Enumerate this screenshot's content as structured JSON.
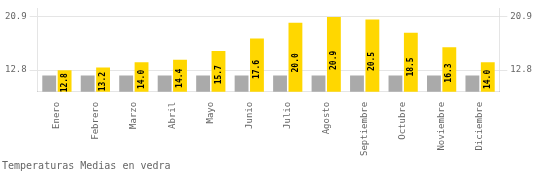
{
  "chart_data": {
    "type": "bar",
    "title": "Temperaturas Medias en vedra",
    "categories": [
      "Enero",
      "Febrero",
      "Marzo",
      "Abril",
      "Mayo",
      "Junio",
      "Julio",
      "Agosto",
      "Septiembre",
      "Octubre",
      "Noviembre",
      "Diciembre"
    ],
    "series": [
      {
        "color": "#AAAAAA",
        "values": [
          12.0,
          12.0,
          12.0,
          12.0,
          12.0,
          12.0,
          12.0,
          12.0,
          12.0,
          12.0,
          12.0,
          12.0
        ]
      },
      {
        "color": "#FFD700",
        "values": [
          12.8,
          13.2,
          14.0,
          14.4,
          15.7,
          17.6,
          20.0,
          20.9,
          20.5,
          18.5,
          16.3,
          14.0
        ],
        "value_labels": [
          "12.8",
          "13.2",
          "14.0",
          "14.4",
          "15.7",
          "17.6",
          "20.0",
          "20.9",
          "20.5",
          "18.5",
          "16.3",
          "14.0"
        ],
        "data_labels": true
      }
    ],
    "ylim": [
      9.5,
      22.2
    ],
    "yticks": [
      12.8,
      20.9
    ],
    "y2lim": [
      9.5,
      22.2
    ],
    "y2ticks": [
      12.8,
      20.9
    ],
    "grid": true
  }
}
